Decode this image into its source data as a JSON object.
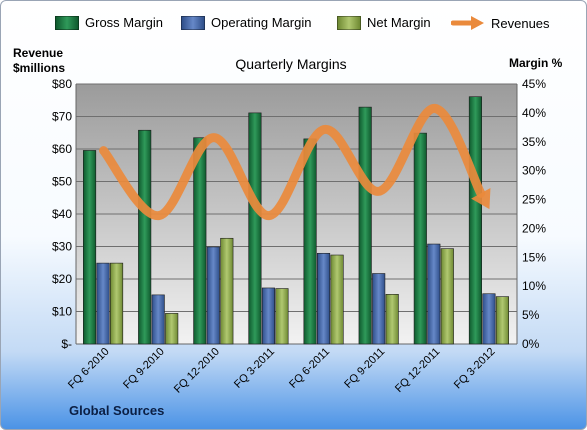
{
  "legend": {
    "gross": "Gross Margin",
    "operating": "Operating Margin",
    "net": "Net Margin",
    "revenues": "Revenues"
  },
  "axis_titles": {
    "left_line1": "Revenue",
    "left_line2": "$millions",
    "right": "Margin %"
  },
  "source": "Global Sources",
  "colors": {
    "gross": "#1e7a45",
    "operating": "#4a6fb0",
    "net": "#93ad52",
    "revenues": "#ea8a3c"
  },
  "chart_data": {
    "type": "bar",
    "title": "Quarterly Margins",
    "categories": [
      "FQ 6-2010",
      "FQ 9-2010",
      "FQ 12-2010",
      "FQ 3-2011",
      "FQ 6-2011",
      "FQ 9-2011",
      "FQ 12-2011",
      "FQ 3-2012"
    ],
    "series": [
      {
        "name": "Gross Margin",
        "values": [
          33.5,
          37,
          35.7,
          40,
          35.5,
          41,
          36.5,
          42.8
        ],
        "axis": "right"
      },
      {
        "name": "Operating Margin",
        "values": [
          14,
          8.5,
          16.8,
          9.7,
          15.7,
          12.2,
          17.3,
          8.7
        ],
        "axis": "right"
      },
      {
        "name": "Net Margin",
        "values": [
          14,
          5.3,
          18.3,
          9.6,
          15.4,
          8.6,
          16.5,
          8.2
        ],
        "axis": "right"
      },
      {
        "name": "Revenues",
        "type": "line",
        "values": [
          59.5,
          39.5,
          63.5,
          39.5,
          66,
          47,
          72.5,
          41.5
        ],
        "axis": "left"
      }
    ],
    "y_left": {
      "min": 0,
      "max": 80,
      "ticks": [
        "$-",
        "$10",
        "$20",
        "$30",
        "$40",
        "$50",
        "$60",
        "$70",
        "$80"
      ]
    },
    "y_right": {
      "min": 0,
      "max": 45,
      "ticks": [
        "0%",
        "5%",
        "10%",
        "15%",
        "20%",
        "25%",
        "30%",
        "35%",
        "40%",
        "45%"
      ]
    },
    "grid": true,
    "legend_position": "top"
  }
}
